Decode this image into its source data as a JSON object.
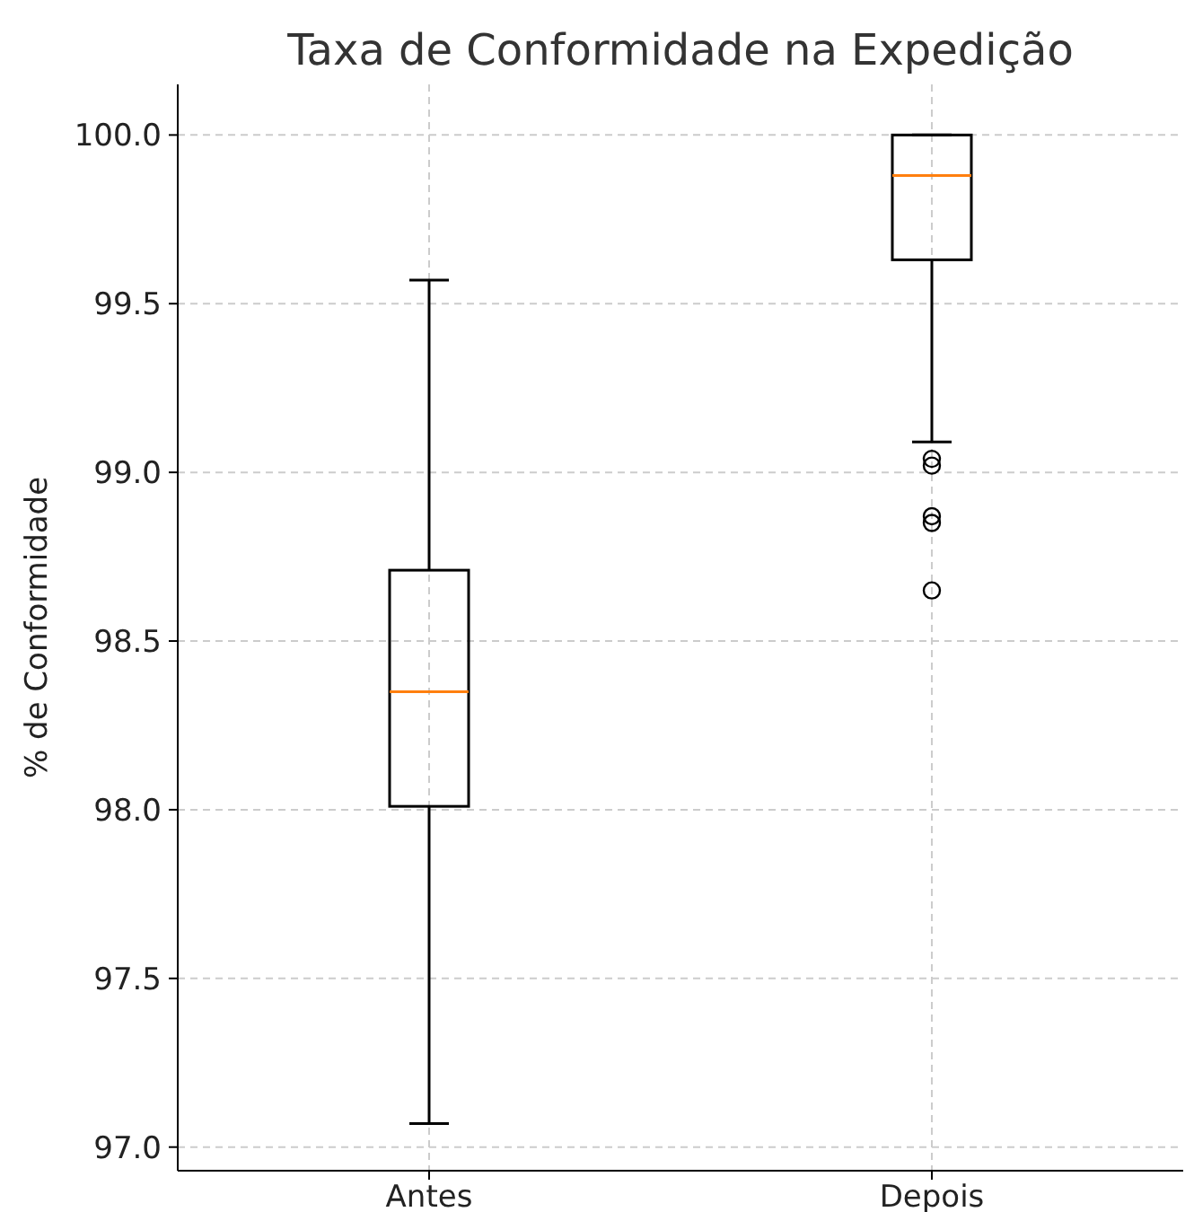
{
  "chart_data": {
    "type": "box",
    "title": "Taxa de Conformidade na Expedição",
    "ylabel": "% de Conformidade",
    "categories": [
      "Antes",
      "Depois"
    ],
    "boxes": [
      {
        "low": 97.07,
        "q1": 98.01,
        "median": 98.35,
        "q3": 98.71,
        "high": 99.57
      },
      {
        "low": 99.09,
        "q1": 99.63,
        "median": 99.88,
        "q3": 100.0,
        "high": 100.0,
        "outliers": [
          99.04,
          99.02,
          98.87,
          98.85,
          98.65
        ]
      }
    ],
    "ylim": [
      96.93,
      100.15
    ],
    "yticks": [
      {
        "value": 97,
        "label": "97.0"
      },
      {
        "value": 97.5,
        "label": "97.5"
      },
      {
        "value": 98,
        "label": "98.0"
      },
      {
        "value": 98.5,
        "label": "98.5"
      },
      {
        "value": 99,
        "label": "99.0"
      },
      {
        "value": 99.5,
        "label": "99.5"
      },
      {
        "value": 100,
        "label": "100.0"
      }
    ],
    "grid": true
  }
}
